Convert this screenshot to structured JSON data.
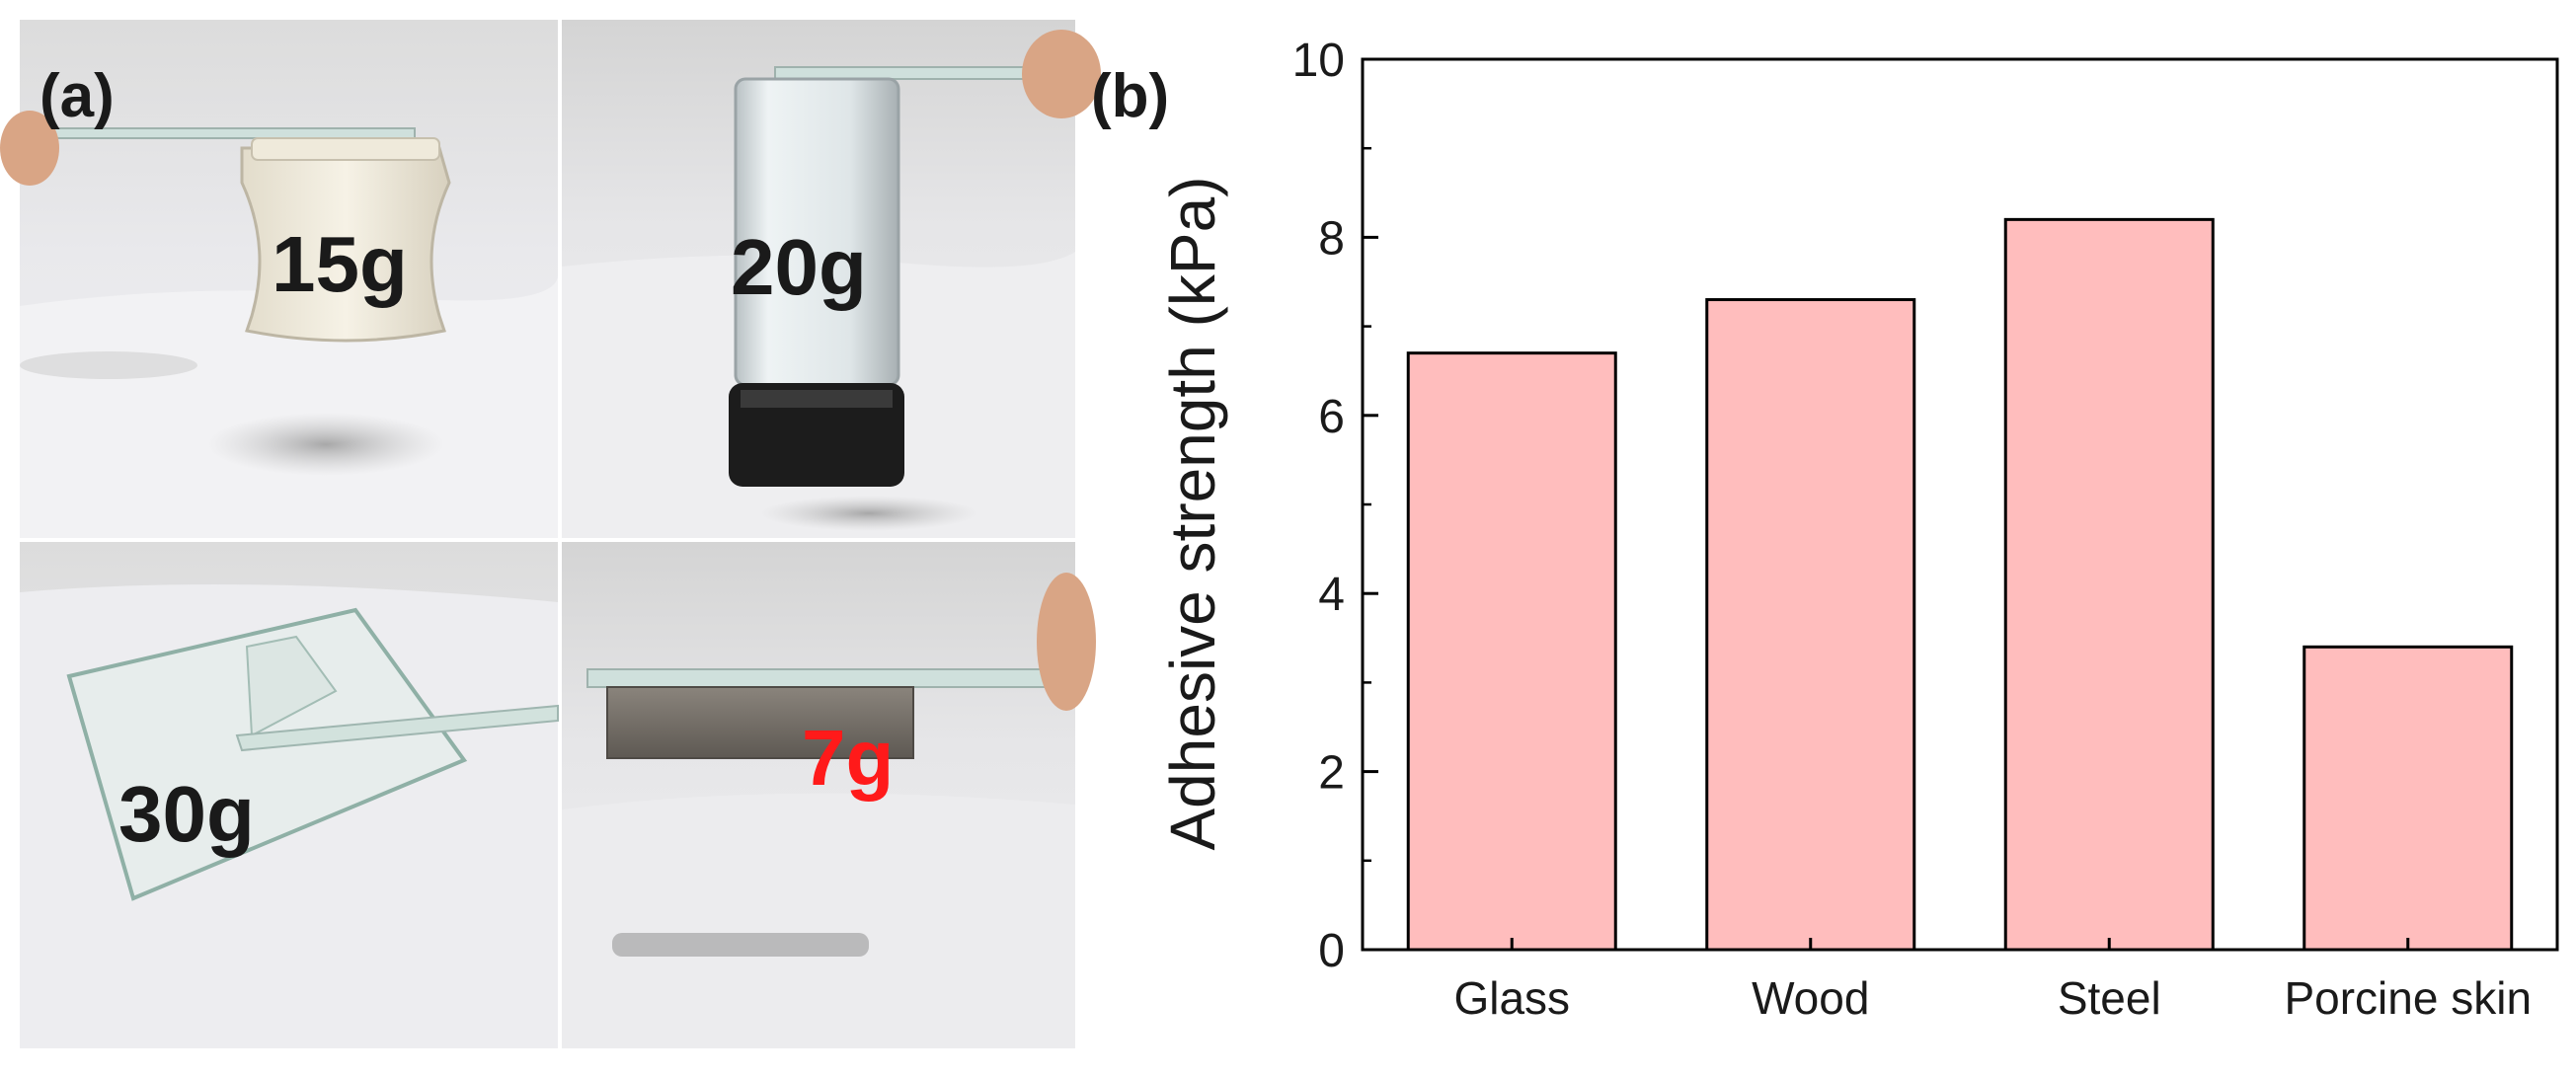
{
  "panel_a": {
    "label": "(a)",
    "photos": [
      {
        "weight": "15g",
        "color": "#1a1a1a"
      },
      {
        "weight": "20g",
        "color": "#1a1a1a"
      },
      {
        "weight": "30g",
        "color": "#1a1a1a"
      },
      {
        "weight": "7g",
        "color": "#ff1a1a"
      }
    ]
  },
  "panel_b": {
    "label": "(b)"
  },
  "chart_data": {
    "type": "bar",
    "categories": [
      "Glass",
      "Wood",
      "Steel",
      "Porcine skin"
    ],
    "values": [
      6.7,
      7.3,
      8.2,
      3.4
    ],
    "ylabel": "Adhesive strength (kPa)",
    "xlabel": "",
    "ylim": [
      0,
      10
    ],
    "yticks": [
      "0",
      "2",
      "4",
      "6",
      "8",
      "10"
    ],
    "grid": false,
    "bar_color": "#ffbdbd",
    "edge_color": "#000000"
  }
}
